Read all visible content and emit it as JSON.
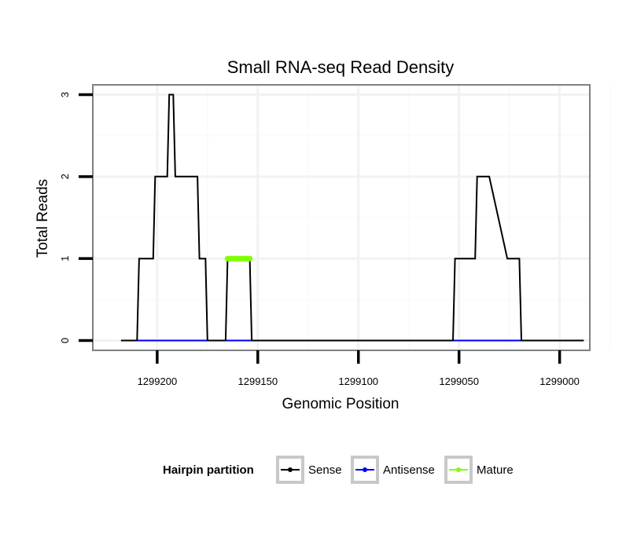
{
  "chart_data": {
    "type": "line",
    "title": "Small RNA-seq Read Density",
    "xlabel": "Genomic Position",
    "ylabel": "Total Reads",
    "x_reversed": true,
    "xlim": [
      1299232,
      1298985
    ],
    "ylim": [
      -0.12,
      3.12
    ],
    "x_ticks": [
      1299200,
      1299150,
      1299100,
      1299050,
      1299000
    ],
    "x_tick_labels": [
      "1299200",
      "1299150",
      "1299100",
      "1299050",
      "1299000"
    ],
    "y_ticks": [
      0,
      1,
      2,
      3
    ],
    "y_tick_labels": [
      "0",
      "1",
      "2",
      "3"
    ],
    "grid": true,
    "legend": {
      "title": "Hairpin partition",
      "placement": "bottom",
      "entries": [
        {
          "name": "Sense",
          "color": "#000000"
        },
        {
          "name": "Antisense",
          "color": "#0000ff"
        },
        {
          "name": "Mature",
          "color": "#7fff00"
        }
      ]
    },
    "series": [
      {
        "name": "Sense",
        "color": "#000000",
        "x": [
          1299218,
          1299210,
          1299209,
          1299202,
          1299201,
          1299195,
          1299194,
          1299192,
          1299191,
          1299185,
          1299184,
          1299180,
          1299179,
          1299176,
          1299175,
          1299166,
          1299165,
          1299154,
          1299153,
          1299053,
          1299052,
          1299042,
          1299041,
          1299036,
          1299035,
          1299026,
          1299025,
          1299020,
          1299019,
          1298988
        ],
        "y": [
          0,
          0,
          1,
          1,
          2,
          2,
          3,
          3,
          2,
          2,
          2,
          2,
          1,
          1,
          0,
          0,
          1,
          1,
          0,
          0,
          1,
          1,
          2,
          2,
          2,
          1,
          1,
          1,
          0,
          0
        ]
      },
      {
        "name": "Antisense",
        "color": "#0000ff",
        "x": [
          1299210,
          1299176,
          1299166,
          1299153,
          1299052,
          1299019
        ],
        "y": [
          0,
          0,
          0,
          0,
          0,
          0
        ]
      },
      {
        "name": "Mature",
        "color": "#7fff00",
        "x": [
          1299165,
          1299154
        ],
        "y": [
          1,
          1
        ]
      }
    ]
  }
}
